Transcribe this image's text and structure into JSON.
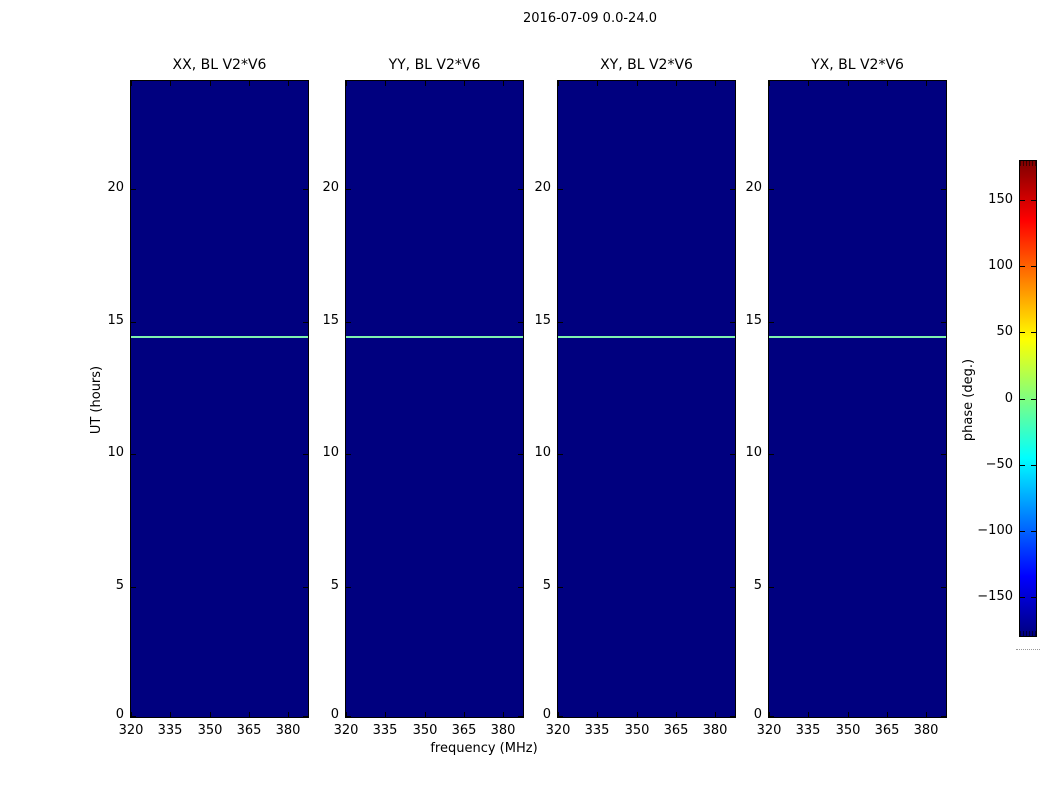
{
  "chart_data": {
    "type": "heatmap",
    "title": "2016-07-09 0.0-24.0",
    "xlabel": "frequency (MHz)",
    "ylabel": "UT (hours)",
    "x_ticks": [
      320,
      335,
      350,
      365,
      380
    ],
    "x_range": [
      320,
      387.5
    ],
    "y_ticks": [
      0,
      5,
      10,
      15,
      20
    ],
    "y_range": [
      0,
      24
    ],
    "panels": [
      {
        "title": "XX, BL V2*V6",
        "feature_line_ut": 14.37
      },
      {
        "title": "YY, BL V2*V6",
        "feature_line_ut": 14.37
      },
      {
        "title": "XY, BL V2*V6",
        "feature_line_ut": 14.37
      },
      {
        "title": "YX, BL V2*V6",
        "feature_line_ut": 14.37
      }
    ],
    "background": {
      "value_deg": -180,
      "color": "#00007f"
    },
    "feature_line": {
      "value_deg": 0,
      "color": "#7ef0ae"
    },
    "colorbar": {
      "label": "phase (deg.)",
      "ticks": [
        150,
        100,
        50,
        0,
        -50,
        -100,
        -150
      ],
      "range": [
        -180,
        180
      ],
      "colormap": "jet",
      "stops": [
        {
          "pos": 0.0,
          "color": "#00007f"
        },
        {
          "pos": 0.125,
          "color": "#0000ff"
        },
        {
          "pos": 0.375,
          "color": "#00ffff"
        },
        {
          "pos": 0.625,
          "color": "#ffff00"
        },
        {
          "pos": 0.875,
          "color": "#ff0000"
        },
        {
          "pos": 1.0,
          "color": "#7f0000"
        }
      ]
    },
    "legend_position": "right-colorbar",
    "grid": false
  }
}
